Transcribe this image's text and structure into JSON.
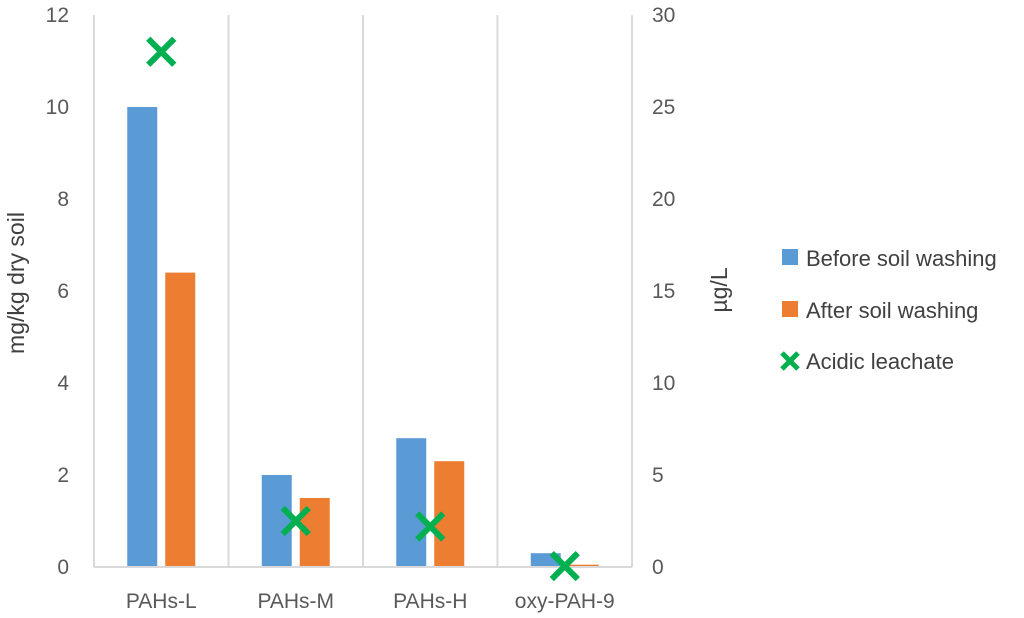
{
  "chart_data": {
    "type": "bar",
    "categories": [
      "PAHs-L",
      "PAHs-M",
      "PAHs-H",
      "oxy-PAH-9"
    ],
    "series": [
      {
        "name": "Before soil washing",
        "kind": "bar",
        "axis": "left",
        "color": "#5B9BD5",
        "values": [
          10.0,
          2.0,
          2.8,
          0.3
        ]
      },
      {
        "name": "After soil washing",
        "kind": "bar",
        "axis": "left",
        "color": "#ED7D31",
        "values": [
          6.4,
          1.5,
          2.3,
          0.05
        ]
      },
      {
        "name": "Acidic leachate",
        "kind": "scatter",
        "marker": "x",
        "axis": "right",
        "color": "#00B050",
        "values": [
          28.0,
          2.5,
          2.2,
          0.05
        ]
      }
    ],
    "ylabel": "mg/kg dry soil",
    "y2label": "µg/L",
    "ylim": [
      0,
      12
    ],
    "y2lim": [
      0,
      30
    ],
    "yticks": [
      "0",
      "2",
      "4",
      "6",
      "8",
      "10",
      "12"
    ],
    "y2ticks": [
      "0",
      "5",
      "10",
      "15",
      "20",
      "25",
      "30"
    ],
    "grid": "vertical category separators",
    "legend_position": "right"
  }
}
